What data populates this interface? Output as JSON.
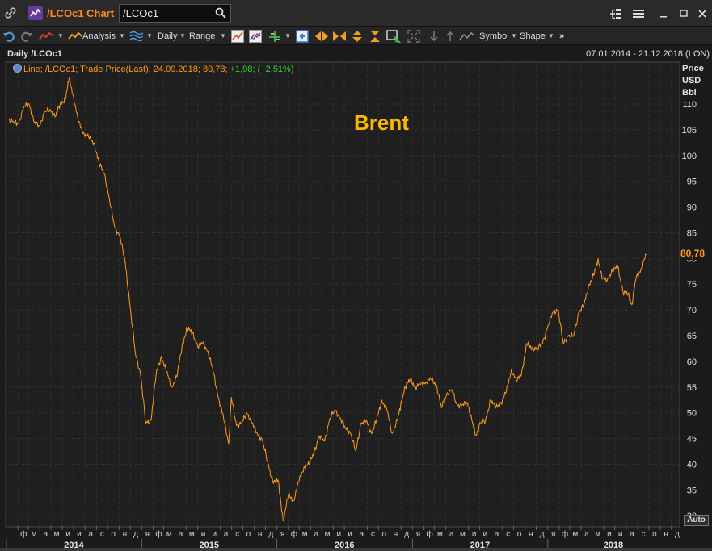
{
  "window": {
    "title": "/LCOc1 Chart",
    "search_value": "/LCOc1",
    "icons": [
      "link-icon",
      "chart-app-icon",
      "search-icon",
      "tree-icon",
      "menu-icon",
      "minimize-icon",
      "maximize-icon",
      "close-icon"
    ]
  },
  "toolbar": {
    "analysis_label": "Analysis",
    "interval_label": "Daily",
    "range_label": "Range",
    "symbol_label": "Symbol",
    "shape_label": "Shape",
    "overflow_label": "»"
  },
  "chart_header": {
    "left": "Daily /LCOc1",
    "right": "07.01.2014 - 21.12.2018 (LON)"
  },
  "legend": {
    "desc": "Line; /LCOc1; Trade Price(Last); 24.09.2018; 80,78;",
    "change": "+1,98; (+2,51%)"
  },
  "annotation": "Brent",
  "axis_unit": {
    "line1": "Price",
    "line2": "USD",
    "line3": "Bbl"
  },
  "last_price_tag": "80,78",
  "auto_label": "Auto",
  "colors": {
    "line": "#ff9a1f",
    "annotation": "#ffb800",
    "change": "#2fd42f",
    "background": "#1b1b1b",
    "grid": "#3a3a3a"
  },
  "chart_data": {
    "type": "line",
    "title": "Brent",
    "series": [
      {
        "name": "/LCOc1",
        "points": [
          [
            "2014-01-07",
            107.0
          ],
          [
            "2014-01-20",
            106.5
          ],
          [
            "2014-02-03",
            106.2
          ],
          [
            "2014-02-17",
            109.5
          ],
          [
            "2014-03-03",
            110.0
          ],
          [
            "2014-03-17",
            106.4
          ],
          [
            "2014-03-31",
            105.8
          ],
          [
            "2014-04-14",
            108.4
          ],
          [
            "2014-04-28",
            109.0
          ],
          [
            "2014-05-12",
            107.5
          ],
          [
            "2014-05-26",
            110.0
          ],
          [
            "2014-06-09",
            111.0
          ],
          [
            "2014-06-19",
            115.0
          ],
          [
            "2014-07-01",
            111.5
          ],
          [
            "2014-07-14",
            106.5
          ],
          [
            "2014-07-28",
            104.5
          ],
          [
            "2014-08-11",
            103.5
          ],
          [
            "2014-08-25",
            102.5
          ],
          [
            "2014-09-08",
            98.5
          ],
          [
            "2014-09-22",
            96.5
          ],
          [
            "2014-10-06",
            91.5
          ],
          [
            "2014-10-20",
            86.0
          ],
          [
            "2014-11-03",
            84.5
          ],
          [
            "2014-11-17",
            79.5
          ],
          [
            "2014-12-01",
            70.5
          ],
          [
            "2014-12-15",
            61.5
          ],
          [
            "2014-12-29",
            57.5
          ],
          [
            "2015-01-12",
            48.0
          ],
          [
            "2015-01-26",
            48.5
          ],
          [
            "2015-02-09",
            57.5
          ],
          [
            "2015-02-23",
            61.0
          ],
          [
            "2015-03-09",
            58.0
          ],
          [
            "2015-03-23",
            55.0
          ],
          [
            "2015-04-06",
            57.0
          ],
          [
            "2015-04-20",
            63.0
          ],
          [
            "2015-05-04",
            66.5
          ],
          [
            "2015-05-18",
            65.5
          ],
          [
            "2015-06-01",
            63.0
          ],
          [
            "2015-06-15",
            63.5
          ],
          [
            "2015-06-29",
            62.0
          ],
          [
            "2015-07-13",
            58.0
          ],
          [
            "2015-07-27",
            53.0
          ],
          [
            "2015-08-10",
            49.0
          ],
          [
            "2015-08-24",
            44.0
          ],
          [
            "2015-08-31",
            53.0
          ],
          [
            "2015-09-14",
            47.5
          ],
          [
            "2015-09-28",
            48.0
          ],
          [
            "2015-10-12",
            50.0
          ],
          [
            "2015-10-26",
            48.0
          ],
          [
            "2015-11-09",
            46.0
          ],
          [
            "2015-11-23",
            44.5
          ],
          [
            "2015-12-07",
            40.5
          ],
          [
            "2015-12-21",
            36.5
          ],
          [
            "2016-01-04",
            37.0
          ],
          [
            "2016-01-18",
            29.0
          ],
          [
            "2016-02-01",
            34.0
          ],
          [
            "2016-02-15",
            33.0
          ],
          [
            "2016-02-29",
            36.5
          ],
          [
            "2016-03-14",
            39.5
          ],
          [
            "2016-03-28",
            40.0
          ],
          [
            "2016-04-11",
            42.5
          ],
          [
            "2016-04-25",
            45.5
          ],
          [
            "2016-05-09",
            44.5
          ],
          [
            "2016-05-23",
            49.0
          ],
          [
            "2016-06-06",
            50.5
          ],
          [
            "2016-06-20",
            49.0
          ],
          [
            "2016-07-04",
            47.0
          ],
          [
            "2016-07-18",
            46.0
          ],
          [
            "2016-08-01",
            42.5
          ],
          [
            "2016-08-15",
            48.0
          ],
          [
            "2016-08-29",
            48.5
          ],
          [
            "2016-09-12",
            46.0
          ],
          [
            "2016-09-26",
            48.5
          ],
          [
            "2016-10-10",
            52.5
          ],
          [
            "2016-10-24",
            50.5
          ],
          [
            "2016-11-07",
            46.0
          ],
          [
            "2016-11-21",
            48.5
          ],
          [
            "2016-11-30",
            51.5
          ],
          [
            "2016-12-12",
            55.0
          ],
          [
            "2016-12-26",
            56.5
          ],
          [
            "2017-01-09",
            55.0
          ],
          [
            "2017-01-23",
            55.5
          ],
          [
            "2017-02-06",
            56.0
          ],
          [
            "2017-02-20",
            56.5
          ],
          [
            "2017-03-06",
            55.5
          ],
          [
            "2017-03-20",
            51.0
          ],
          [
            "2017-04-03",
            53.5
          ],
          [
            "2017-04-17",
            54.5
          ],
          [
            "2017-05-01",
            51.5
          ],
          [
            "2017-05-15",
            51.5
          ],
          [
            "2017-05-29",
            52.0
          ],
          [
            "2017-06-12",
            48.0
          ],
          [
            "2017-06-21",
            45.5
          ],
          [
            "2017-07-03",
            48.0
          ],
          [
            "2017-07-17",
            48.5
          ],
          [
            "2017-07-31",
            52.5
          ],
          [
            "2017-08-14",
            51.0
          ],
          [
            "2017-08-28",
            52.0
          ],
          [
            "2017-09-11",
            54.0
          ],
          [
            "2017-09-25",
            58.5
          ],
          [
            "2017-10-09",
            56.0
          ],
          [
            "2017-10-23",
            58.0
          ],
          [
            "2017-11-06",
            63.5
          ],
          [
            "2017-11-20",
            62.5
          ],
          [
            "2017-12-04",
            62.5
          ],
          [
            "2017-12-18",
            63.5
          ],
          [
            "2018-01-02",
            67.0
          ],
          [
            "2018-01-15",
            69.5
          ],
          [
            "2018-01-29",
            70.0
          ],
          [
            "2018-02-12",
            63.5
          ],
          [
            "2018-02-26",
            65.0
          ],
          [
            "2018-03-12",
            65.0
          ],
          [
            "2018-03-26",
            69.5
          ],
          [
            "2018-04-09",
            71.0
          ],
          [
            "2018-04-23",
            75.0
          ],
          [
            "2018-05-07",
            77.0
          ],
          [
            "2018-05-17",
            80.0
          ],
          [
            "2018-05-28",
            76.0
          ],
          [
            "2018-06-11",
            76.0
          ],
          [
            "2018-06-25",
            77.5
          ],
          [
            "2018-07-09",
            78.5
          ],
          [
            "2018-07-23",
            73.5
          ],
          [
            "2018-08-06",
            73.0
          ],
          [
            "2018-08-16",
            71.0
          ],
          [
            "2018-08-27",
            76.0
          ],
          [
            "2018-09-10",
            78.0
          ],
          [
            "2018-09-24",
            80.78
          ]
        ]
      }
    ],
    "x_range": [
      "2014-01-01",
      "2018-12-21"
    ],
    "ylim": [
      28,
      118
    ],
    "yticks": [
      30,
      35,
      40,
      45,
      50,
      55,
      60,
      65,
      70,
      75,
      80,
      85,
      90,
      95,
      100,
      105,
      110
    ],
    "month_labels": [
      "ф",
      "м",
      "а",
      "м",
      "и",
      "и",
      "а",
      "с",
      "о",
      "н",
      "д",
      "я",
      "ф",
      "м",
      "а",
      "м",
      "и",
      "и",
      "а",
      "с",
      "о",
      "н",
      "д",
      "я",
      "ф",
      "м",
      "а",
      "м",
      "и",
      "и",
      "а",
      "с",
      "о",
      "н",
      "д",
      "я",
      "ф",
      "м",
      "а",
      "м",
      "и",
      "и",
      "а",
      "с",
      "о",
      "н",
      "д",
      "я",
      "ф",
      "м",
      "а",
      "м",
      "и",
      "и",
      "а",
      "с",
      "о",
      "н",
      "д"
    ],
    "year_labels": [
      "2014",
      "2015",
      "2016",
      "2017",
      "2018"
    ],
    "grid": true,
    "ylabel": "Price USD Bbl"
  }
}
